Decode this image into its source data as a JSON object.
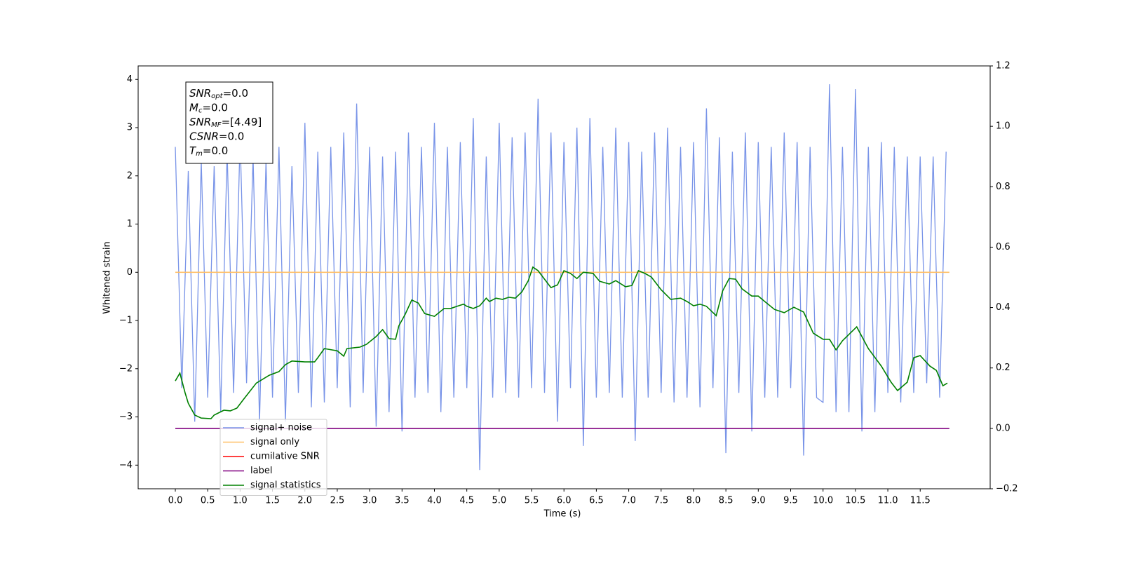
{
  "chart_data": {
    "type": "line",
    "xlabel": "Time (s)",
    "ylabel": "Whitened strain",
    "xlim": [
      -0.574,
      12.58
    ],
    "ylim": [
      -4.49,
      4.28
    ],
    "y2lim": [
      -0.2,
      1.2
    ],
    "xticks": [
      {
        "value": 0,
        "label": "0.0"
      },
      0.5,
      {
        "value": 1,
        "label": "1.0"
      },
      1.5,
      {
        "value": 2,
        "label": "2.0"
      },
      2.5,
      {
        "value": 3,
        "label": "3.0"
      },
      3.5,
      {
        "value": 4,
        "label": "4.0"
      },
      4.5,
      {
        "value": 5,
        "label": "5.0"
      },
      5.5,
      {
        "value": 6,
        "label": "6.0"
      },
      6.5,
      {
        "value": 7,
        "label": "7.0"
      },
      7.5,
      {
        "value": 8,
        "label": "8.0"
      },
      8.5,
      {
        "value": 9,
        "label": "9.0"
      },
      9.5,
      {
        "value": 10,
        "label": "10.0"
      },
      10.5,
      {
        "value": 11,
        "label": "11.0"
      },
      11.5
    ],
    "yticks": [
      {
        "value": -4,
        "label": "−4"
      },
      {
        "value": -3,
        "label": "−3"
      },
      {
        "value": -2,
        "label": "−2"
      },
      {
        "value": -1,
        "label": "−1"
      },
      0,
      1,
      2,
      3,
      4
    ],
    "y2ticks": [
      {
        "value": -0.2,
        "label": "−0.2"
      },
      {
        "value": 0,
        "label": "0.0"
      },
      0.2,
      0.4,
      0.6,
      0.8,
      {
        "value": 1,
        "label": "1.0"
      },
      1.2
    ],
    "legend": "lower left",
    "annotations": [
      {
        "symbol": "SNR",
        "sub": "opt",
        "text": "=0.0"
      },
      {
        "symbol": "M",
        "sub": "c",
        "text": "=0.0"
      },
      {
        "symbol": "SNR",
        "sub": "MF",
        "text": "=[4.49]"
      },
      {
        "symbol": "CSNR",
        "text": "=0.0"
      },
      {
        "symbol": "T",
        "sub": "m",
        "text": "=0.0"
      }
    ],
    "series": [
      {
        "name": "signal+ noise",
        "color": "#7994e8",
        "x": [
          0.0,
          0.1,
          0.2,
          0.3,
          0.4,
          0.5,
          0.6,
          0.7,
          0.8,
          0.9,
          1.0,
          1.1,
          1.2,
          1.3,
          1.4,
          1.5,
          1.6,
          1.7,
          1.8,
          1.9,
          2.0,
          2.1,
          2.2,
          2.3,
          2.4,
          2.5,
          2.6,
          2.7,
          2.8,
          2.9,
          3.0,
          3.1,
          3.2,
          3.3,
          3.4,
          3.5,
          3.6,
          3.7,
          3.8,
          3.9,
          4.0,
          4.1,
          4.2,
          4.3,
          4.4,
          4.5,
          4.6,
          4.7,
          4.8,
          4.9,
          5.0,
          5.1,
          5.2,
          5.3,
          5.4,
          5.5,
          5.6,
          5.7,
          5.8,
          5.9,
          6.0,
          6.1,
          6.2,
          6.3,
          6.4,
          6.5,
          6.6,
          6.7,
          6.8,
          6.9,
          7.0,
          7.1,
          7.2,
          7.3,
          7.4,
          7.5,
          7.6,
          7.7,
          7.8,
          7.9,
          8.0,
          8.1,
          8.2,
          8.3,
          8.4,
          8.5,
          8.6,
          8.7,
          8.8,
          8.9,
          9.0,
          9.1,
          9.2,
          9.3,
          9.4,
          9.5,
          9.6,
          9.7,
          9.8,
          9.9,
          10.0,
          10.1,
          10.2,
          10.3,
          10.4,
          10.5,
          10.6,
          10.7,
          10.8,
          10.9,
          11.0,
          11.1,
          11.2,
          11.3,
          11.4,
          11.5,
          11.6,
          11.7,
          11.8,
          11.9
        ],
        "values": [
          2.6,
          -2.4,
          2.1,
          -3.1,
          2.3,
          -2.6,
          2.2,
          -2.9,
          2.5,
          -2.5,
          2.8,
          -2.3,
          2.4,
          -3.1,
          2.3,
          -2.6,
          2.6,
          -3.1,
          2.2,
          -2.5,
          3.1,
          -2.8,
          2.5,
          -2.7,
          2.6,
          -2.4,
          2.9,
          -2.8,
          3.5,
          -2.5,
          2.6,
          -3.2,
          2.4,
          -2.9,
          2.5,
          -3.3,
          2.9,
          -2.6,
          2.6,
          -2.5,
          3.1,
          -2.9,
          2.6,
          -2.6,
          2.7,
          -2.4,
          3.2,
          -4.1,
          2.4,
          -2.6,
          3.1,
          -2.5,
          2.8,
          -2.6,
          2.9,
          -2.4,
          3.6,
          -2.5,
          2.9,
          -3.1,
          2.7,
          -2.4,
          3.0,
          -3.6,
          3.2,
          -2.6,
          2.6,
          -2.5,
          3.0,
          -2.6,
          2.7,
          -3.5,
          2.5,
          -2.6,
          2.9,
          -2.5,
          3.0,
          -2.7,
          2.6,
          -2.6,
          2.7,
          -2.8,
          3.4,
          -2.4,
          2.8,
          -3.75,
          2.5,
          -2.5,
          2.9,
          -3.3,
          2.7,
          -2.6,
          2.6,
          -2.6,
          2.9,
          -2.4,
          2.7,
          -3.8,
          2.6,
          -2.6,
          -2.7,
          3.9,
          -2.9,
          2.6,
          -2.9,
          3.8,
          -3.3,
          2.6,
          -2.9,
          2.7,
          -2.5,
          2.6,
          -2.7,
          2.4,
          -2.5,
          2.4,
          -2.3,
          2.4,
          -2.6,
          2.5
        ]
      },
      {
        "name": "signal only",
        "color": "#ffbf66",
        "x": [
          0,
          11.95
        ],
        "values": [
          0,
          0
        ]
      },
      {
        "name": "cumilative SNR",
        "color": "#ff0000",
        "x": [],
        "values": []
      },
      {
        "name": "label",
        "color": "#800080",
        "axis": "y2",
        "x": [
          0,
          11.95
        ],
        "values": [
          0,
          0
        ]
      },
      {
        "name": "signal statistics",
        "color": "#008000",
        "axis": "y2",
        "x": [
          0.0,
          0.07,
          0.15,
          0.2,
          0.3,
          0.4,
          0.55,
          0.6,
          0.75,
          0.85,
          0.95,
          1.05,
          1.25,
          1.45,
          1.6,
          1.7,
          1.8,
          2.0,
          2.15,
          2.2,
          2.3,
          2.5,
          2.6,
          2.65,
          2.85,
          2.95,
          3.1,
          3.2,
          3.3,
          3.4,
          3.45,
          3.55,
          3.65,
          3.75,
          3.85,
          4.0,
          4.15,
          4.25,
          4.35,
          4.45,
          4.5,
          4.6,
          4.7,
          4.8,
          4.85,
          4.95,
          5.05,
          5.15,
          5.25,
          5.35,
          5.45,
          5.52,
          5.6,
          5.7,
          5.8,
          5.9,
          6.0,
          6.1,
          6.2,
          6.3,
          6.45,
          6.55,
          6.7,
          6.8,
          6.95,
          7.05,
          7.15,
          7.25,
          7.35,
          7.5,
          7.65,
          7.8,
          7.9,
          8.0,
          8.1,
          8.2,
          8.35,
          8.45,
          8.55,
          8.65,
          8.75,
          8.9,
          9.0,
          9.1,
          9.25,
          9.4,
          9.55,
          9.7,
          9.85,
          10.0,
          10.1,
          10.2,
          10.3,
          10.52,
          10.7,
          10.9,
          11.05,
          11.15,
          11.3,
          11.4,
          11.5,
          11.65,
          11.75,
          11.85,
          11.92
        ],
        "values": [
          0.157,
          0.183,
          0.118,
          0.083,
          0.044,
          0.034,
          0.032,
          0.044,
          0.06,
          0.058,
          0.067,
          0.095,
          0.15,
          0.176,
          0.188,
          0.211,
          0.223,
          0.22,
          0.22,
          0.234,
          0.264,
          0.257,
          0.239,
          0.264,
          0.269,
          0.278,
          0.304,
          0.327,
          0.297,
          0.295,
          0.339,
          0.378,
          0.425,
          0.415,
          0.38,
          0.371,
          0.397,
          0.397,
          0.404,
          0.411,
          0.404,
          0.397,
          0.406,
          0.431,
          0.42,
          0.431,
          0.427,
          0.434,
          0.431,
          0.452,
          0.489,
          0.534,
          0.522,
          0.494,
          0.466,
          0.475,
          0.522,
          0.513,
          0.496,
          0.517,
          0.513,
          0.487,
          0.478,
          0.489,
          0.469,
          0.473,
          0.522,
          0.513,
          0.501,
          0.459,
          0.427,
          0.431,
          0.42,
          0.406,
          0.411,
          0.404,
          0.373,
          0.455,
          0.496,
          0.494,
          0.462,
          0.438,
          0.438,
          0.42,
          0.394,
          0.383,
          0.401,
          0.385,
          0.315,
          0.295,
          0.295,
          0.26,
          0.29,
          0.336,
          0.264,
          0.206,
          0.153,
          0.125,
          0.153,
          0.234,
          0.241,
          0.206,
          0.192,
          0.141,
          0.15
        ]
      }
    ]
  }
}
